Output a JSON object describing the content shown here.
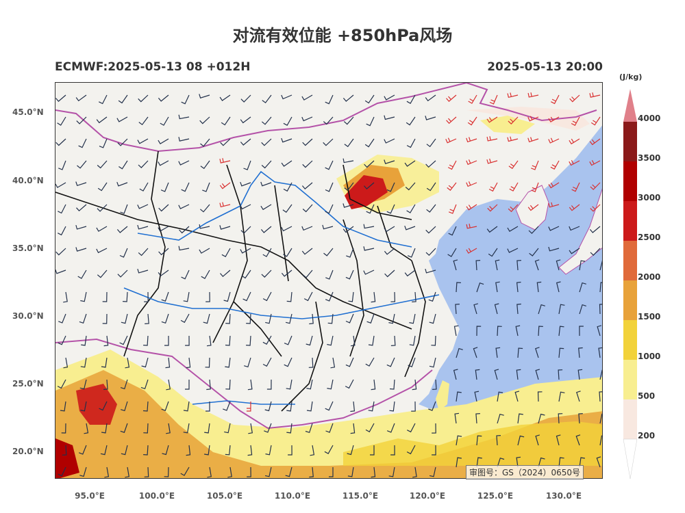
{
  "title": "对流有效位能 +850hPa风场",
  "model_run": "ECMWF:2025-05-13 08 +012H",
  "valid_time": "2025-05-13 20:00",
  "approval_number": "审图号：GS（2024）0650号",
  "lat_labels": [
    "45.0°N",
    "40.0°N",
    "35.0°N",
    "30.0°N",
    "25.0°N",
    "20.0°N"
  ],
  "lon_labels": [
    "95.0°E",
    "100.0°E",
    "105.0°E",
    "110.0°E",
    "115.0°E",
    "120.0°E",
    "125.0°E",
    "130.0°E"
  ],
  "colorbar": {
    "unit": "(J/kg)",
    "labels": [
      "4000",
      "3500",
      "3000",
      "2500",
      "2000",
      "1500",
      "1000",
      "500",
      "200"
    ],
    "colors": [
      "#e0808a",
      "#8b1a1a",
      "#b00000",
      "#cc1a1a",
      "#e06a3a",
      "#e8a23a",
      "#f2d23a",
      "#f8ee90",
      "#f8e8e0",
      "#ffffff"
    ]
  },
  "colors": {
    "land": "#f3f2ee",
    "sea": "#a9c3ee",
    "border": "#111111",
    "coast": "#b452a8",
    "wind": "#22304a",
    "wind_strong": "#d93030",
    "river": "#1f6fd1"
  }
}
